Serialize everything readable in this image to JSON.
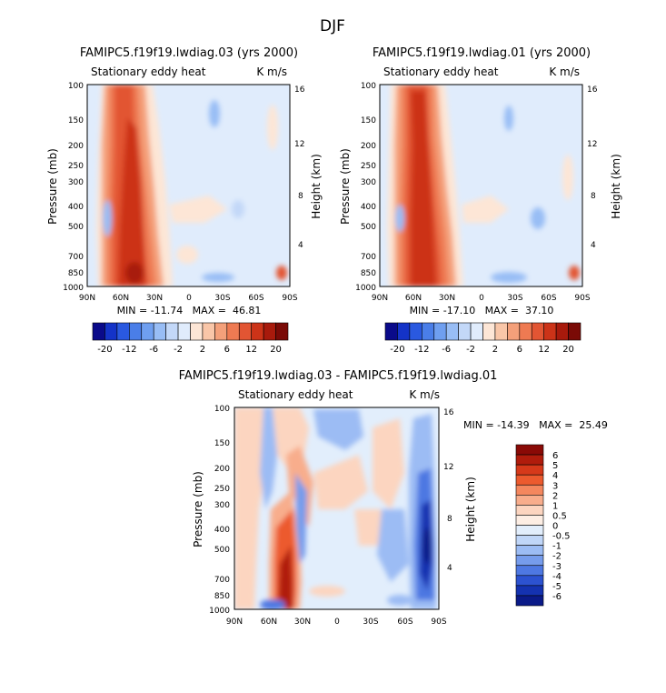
{
  "suptitle": "DJF",
  "panels": [
    {
      "title": "FAMIPC5.f19f19.lwdiag.03 (yrs 2000)",
      "left_label": "Stationary eddy heat",
      "right_label": "K m/s",
      "ylabel": "Pressure (mb)",
      "ylabel2": "Height (km)",
      "stats": "MIN = -11.74   MAX =  46.81"
    },
    {
      "title": "FAMIPC5.f19f19.lwdiag.01 (yrs 2000)",
      "left_label": "Stationary eddy heat",
      "right_label": "K m/s",
      "ylabel": "Pressure (mb)",
      "ylabel2": "Height (km)",
      "stats": "MIN = -17.10   MAX =  37.10"
    },
    {
      "title": "FAMIPC5.f19f19.lwdiag.03 - FAMIPC5.f19f19.lwdiag.01",
      "left_label": "Stationary eddy heat",
      "right_label": "K m/s",
      "ylabel": "Pressure (mb)",
      "ylabel2": "Height (km)",
      "stats": "MIN = -14.39   MAX =  25.49"
    }
  ],
  "axes": {
    "x_ticks": [
      "90N",
      "60N",
      "30N",
      "0",
      "30S",
      "60S",
      "90S"
    ],
    "y_ticks": [
      "100",
      "150",
      "200",
      "250",
      "300",
      "400",
      "500",
      "700",
      "850",
      "1000"
    ],
    "y2_ticks": [
      "16",
      "12",
      "8",
      "4"
    ]
  },
  "colorbars": {
    "main_labels": [
      "-20",
      "-12",
      "-6",
      "-2",
      "2",
      "6",
      "12",
      "20"
    ],
    "diff_labels": [
      "6",
      "5",
      "4",
      "3",
      "2",
      "1",
      "0.5",
      "0",
      "-0.5",
      "-1",
      "-2",
      "-3",
      "-4",
      "-5",
      "-6"
    ],
    "main_colors": [
      "#0a0a8a",
      "#1433c8",
      "#2a59e0",
      "#4a7ee8",
      "#6f9ff0",
      "#98bdf5",
      "#c3d8f8",
      "#e0ecfc",
      "#fde6d6",
      "#f9c6a8",
      "#f4a07a",
      "#ee7a52",
      "#e25533",
      "#cc3318",
      "#a81a0c",
      "#7a0a06"
    ],
    "diff_colors": [
      "#8a0a06",
      "#b01c0c",
      "#d6391a",
      "#ec5a2e",
      "#f4875e",
      "#f8ad8c",
      "#fcd5c0",
      "#fdeee4",
      "#e2eefc",
      "#c0d6f8",
      "#9cbcf4",
      "#769cec",
      "#4e78e2",
      "#2c52d0",
      "#1432b0",
      "#0a1a88"
    ]
  },
  "chart_data": [
    {
      "type": "heatmap",
      "title": "FAMIPC5.f19f19.lwdiag.03 (yrs 2000)",
      "xlabel": "",
      "ylabel": "Pressure (mb)",
      "y2label": "Height (km)",
      "x_range": [
        "90N",
        "90S"
      ],
      "y_range": [
        1000,
        100
      ],
      "y_scale": "log",
      "min": -11.74,
      "max": 46.81,
      "contour_levels": [
        -20,
        -16,
        -12,
        -8,
        -6,
        -4,
        -2,
        -1,
        1,
        2,
        4,
        6,
        8,
        12,
        16,
        20
      ],
      "features": "strong positive maximum (>20) centered near 50N extending 1000-100 mb; weak negative values in southern hemisphere"
    },
    {
      "type": "heatmap",
      "title": "FAMIPC5.f19f19.lwdiag.01 (yrs 2000)",
      "xlabel": "",
      "ylabel": "Pressure (mb)",
      "y2label": "Height (km)",
      "x_range": [
        "90N",
        "90S"
      ],
      "y_range": [
        1000,
        100
      ],
      "y_scale": "log",
      "min": -17.1,
      "max": 37.1,
      "contour_levels": [
        -20,
        -16,
        -12,
        -8,
        -6,
        -4,
        -2,
        -1,
        1,
        2,
        4,
        6,
        8,
        12,
        16,
        20
      ],
      "features": "strong positive maximum centered near 50N extending through the column; weak values elsewhere"
    },
    {
      "type": "heatmap",
      "title": "FAMIPC5.f19f19.lwdiag.03 - FAMIPC5.f19f19.lwdiag.01",
      "xlabel": "",
      "ylabel": "Pressure (mb)",
      "y2label": "Height (km)",
      "x_range": [
        "90N",
        "90S"
      ],
      "y_range": [
        1000,
        100
      ],
      "y_scale": "log",
      "min": -14.39,
      "max": 25.49,
      "contour_levels": [
        -6,
        -5,
        -4,
        -3,
        -2,
        -1,
        -0.5,
        0,
        0.5,
        1,
        2,
        3,
        4,
        5,
        6
      ],
      "features": "positive difference near 45N in lower troposphere; strong negative difference near 80S; mixed pattern elsewhere"
    }
  ]
}
